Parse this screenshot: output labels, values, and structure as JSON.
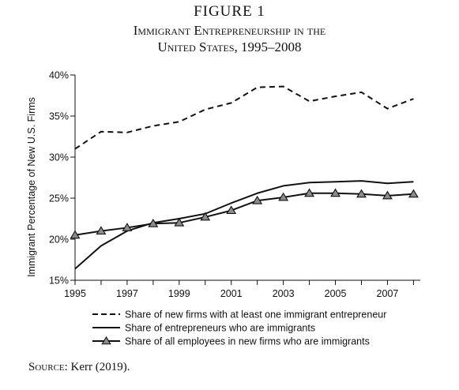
{
  "figure": {
    "number_label": "FIGURE 1",
    "title_line1": "Immigrant Entrepreneurship in the",
    "title_line2": "United States, 1995–2008"
  },
  "source": {
    "label": "Source:",
    "text": " Kerr (2019)."
  },
  "chart_data": {
    "type": "line",
    "title": "Immigrant Entrepreneurship in the United States, 1995–2008",
    "xlabel": "",
    "ylabel": "Immigrant Percentage of New U.S. Firms",
    "x": [
      1995,
      1996,
      1997,
      1998,
      1999,
      2000,
      2001,
      2002,
      2003,
      2004,
      2005,
      2006,
      2007,
      2008
    ],
    "xlim": [
      1995,
      2008.2
    ],
    "ylim": [
      15,
      40
    ],
    "x_ticks": [
      1995,
      1997,
      1999,
      2001,
      2003,
      2005,
      2007
    ],
    "x_tick_labels": [
      "1995",
      "1997",
      "1999",
      "2001",
      "2003",
      "2005",
      "2007"
    ],
    "y_ticks": [
      15,
      20,
      25,
      30,
      35,
      40
    ],
    "y_tick_labels": [
      "15%",
      "20%",
      "25%",
      "30%",
      "35%",
      "40%"
    ],
    "grid": false,
    "legend_position": "bottom",
    "series": [
      {
        "name": "Share of new firms with at least one immigrant entrepreneur",
        "style": "dashed",
        "marker": "none",
        "values": [
          31.0,
          33.1,
          33.0,
          33.8,
          34.3,
          35.8,
          36.6,
          38.5,
          38.6,
          36.8,
          37.4,
          37.9,
          35.9,
          37.1
        ]
      },
      {
        "name": "Share of entrepreneurs who are immigrants",
        "style": "solid",
        "marker": "none",
        "values": [
          16.4,
          19.2,
          21.0,
          22.0,
          22.5,
          23.1,
          24.4,
          25.6,
          26.5,
          26.9,
          27.0,
          27.1,
          26.8,
          27.0
        ]
      },
      {
        "name": "Share of all employees in new firms who are immigrants",
        "style": "solid",
        "marker": "triangle",
        "values": [
          20.5,
          21.0,
          21.4,
          21.9,
          22.0,
          22.7,
          23.5,
          24.7,
          25.1,
          25.6,
          25.6,
          25.5,
          25.3,
          25.5
        ]
      }
    ],
    "colors": {
      "line": "#111111",
      "marker_fill": "#8c8c8c"
    }
  }
}
